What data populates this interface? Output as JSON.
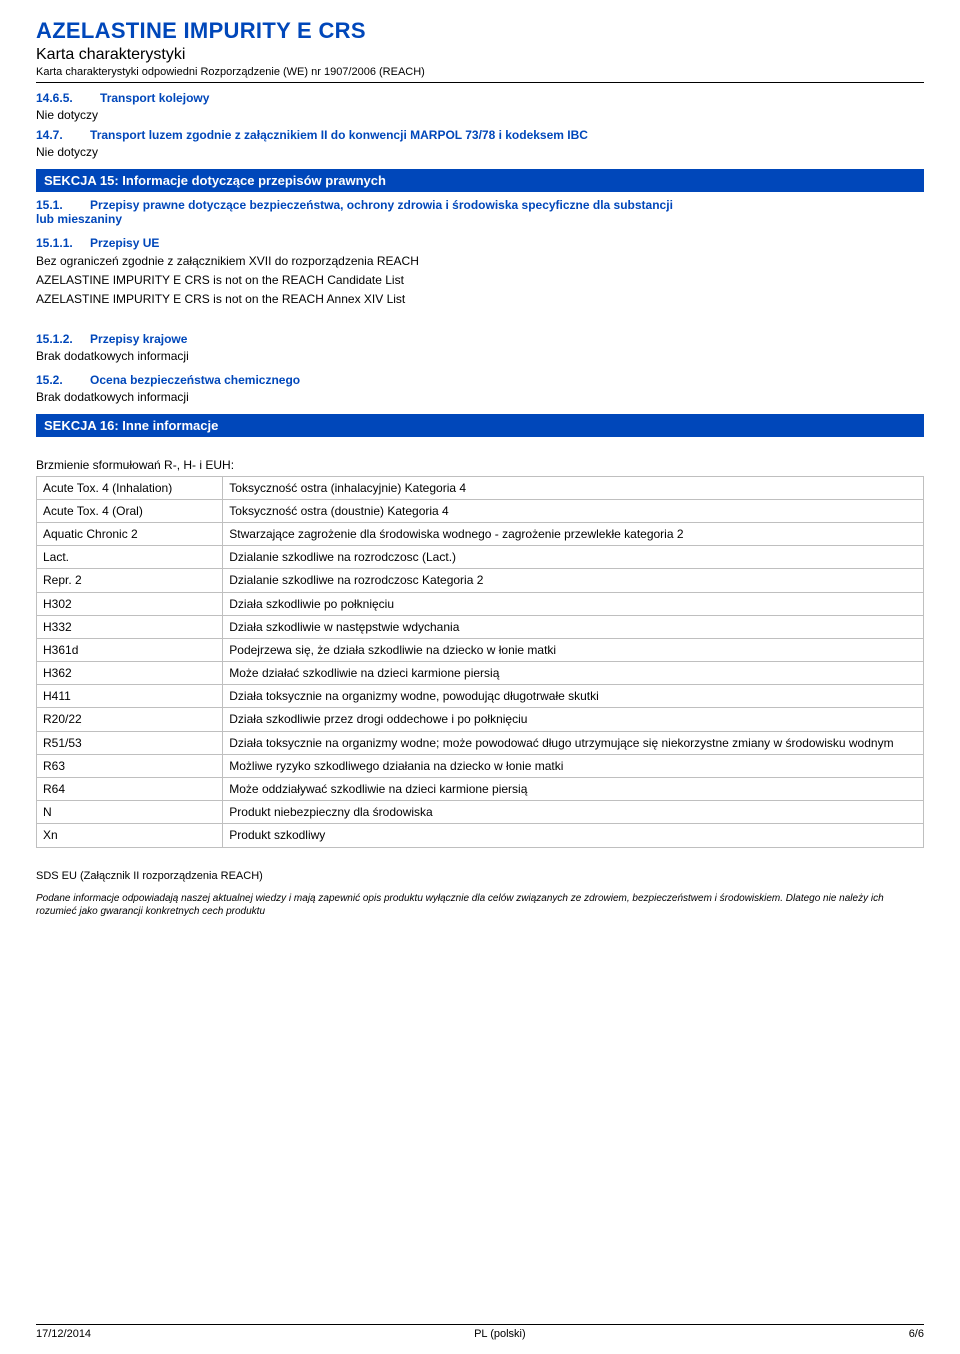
{
  "header": {
    "title": "AZELASTINE IMPURITY E CRS",
    "subtitle": "Karta charakterystyki",
    "subsubtitle": "Karta charakterystyki odpowiedni Rozporządzenie (WE) nr 1907/2006 (REACH)"
  },
  "sec1465": {
    "num": "14.6.5.",
    "title": "Transport kolejowy",
    "body": "Nie dotyczy"
  },
  "sec147": {
    "num": "14.7.",
    "title": "Transport luzem zgodnie z załącznikiem II do konwencji MARPOL 73/78 i kodeksem IBC",
    "body": "Nie dotyczy"
  },
  "sekcja15": {
    "bar": "SEKCJA 15: Informacje dotyczące przepisów prawnych"
  },
  "sec151": {
    "num": "15.1.",
    "title_l1": "Przepisy prawne dotyczące bezpieczeństwa, ochrony zdrowia i środowiska specyficzne dla substancji",
    "title_l2": "lub  mieszaniny"
  },
  "sec1511": {
    "num": "15.1.1.",
    "title": "Przepisy UE",
    "body1": "Bez ograniczeń zgodnie z załącznikiem XVII do rozporządzenia  REACH",
    "body2": "AZELASTINE IMPURITY E CRS is not on the REACH Candidate List",
    "body3": "AZELASTINE IMPURITY E CRS is not on the REACH Annex XIV List"
  },
  "sec1512": {
    "num": "15.1.2.",
    "title": "Przepisy krajowe",
    "body": "Brak dodatkowych informacji"
  },
  "sec152": {
    "num": "15.2.",
    "title": "Ocena bezpieczeństwa chemicznego",
    "body": "Brak dodatkowych informacji"
  },
  "sekcja16": {
    "bar": "SEKCJA 16: Inne informacje"
  },
  "hazard_intro": "Brzmienie sformułowań R-, H- i EUH:",
  "hazard_rows": [
    [
      "Acute Tox. 4 (Inhalation)",
      "Toksyczność ostra (inhalacyjnie) Kategoria 4"
    ],
    [
      "Acute Tox. 4 (Oral)",
      "Toksyczność ostra (doustnie) Kategoria 4"
    ],
    [
      "Aquatic Chronic 2",
      "Stwarzające zagrożenie dla środowiska wodnego - zagrożenie przewlekłe kategoria 2"
    ],
    [
      "Lact.",
      "Dzialanie szkodliwe na rozrodczosc (Lact.)"
    ],
    [
      "Repr. 2",
      "Dzialanie szkodliwe na rozrodczosc Kategoria 2"
    ],
    [
      "H302",
      "Działa szkodliwie po połknięciu"
    ],
    [
      "H332",
      "Działa szkodliwie w następstwie wdychania"
    ],
    [
      "H361d",
      "Podejrzewa się, że działa szkodliwie na dziecko w łonie matki"
    ],
    [
      "H362",
      "Może działać szkodliwie na dzieci karmione piersią"
    ],
    [
      "H411",
      "Działa toksycznie na organizmy wodne, powodując długotrwałe skutki"
    ],
    [
      "R20/22",
      "Działa szkodliwie przez drogi oddechowe i po połknięciu"
    ],
    [
      "R51/53",
      "Działa toksycznie na organizmy wodne; może powodować długo utrzymujące się niekorzystne zmiany w środowisku wodnym"
    ],
    [
      "R63",
      "Możliwe ryzyko szkodliwego działania na dziecko w łonie matki"
    ],
    [
      "R64",
      "Może oddziaływać szkodliwie na dzieci karmione piersią"
    ],
    [
      "N",
      "Produkt niebezpieczny dla środowiska"
    ],
    [
      "Xn",
      "Produkt szkodliwy"
    ]
  ],
  "footnote": "SDS EU (Załącznik II rozporządzenia REACH)",
  "disclaimer": "Podane informacje odpowiadają naszej aktualnej wiedzy i mają zapewnić opis produktu wyłącznie dla celów związanych ze zdrowiem, bezpieczeństwem i środowiskiem. Dlatego nie należy ich rozumieć jako gwarancji konkretnych cech produktu",
  "footer": {
    "left": "17/12/2014",
    "center": "PL (polski)",
    "right": "6/6"
  }
}
